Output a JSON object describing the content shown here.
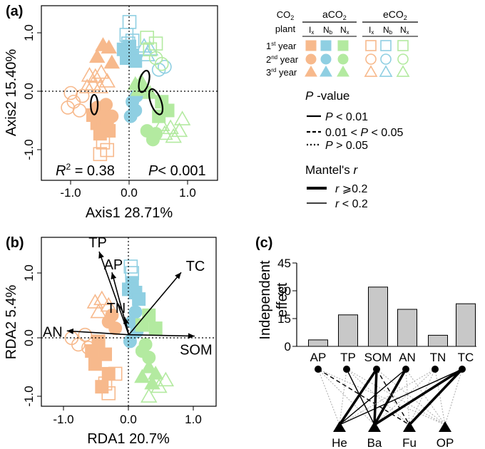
{
  "colors": {
    "ix": "#f7b98c",
    "nb": "#8fcfe2",
    "nx": "#b3eaa0",
    "bar": "#c8c8c8",
    "line": "#000000",
    "dotted_link": "#aaaaaa"
  },
  "panel_a": {
    "label": "(a)",
    "xlabel": "Axis1 28.71%",
    "ylabel": "Axis2 15.40%",
    "xticks": [
      "-1.0",
      "0.0",
      "1.0"
    ],
    "yticks": [
      "1.0",
      "0.0",
      "-1.0"
    ],
    "stats_r2_prefix": "R",
    "stats_r2_sup": "2",
    "stats_r2_value": " = 0.38",
    "stats_p_prefix": "P",
    "stats_p_value": "< 0.001"
  },
  "legend": {
    "co2_label": "CO",
    "co2_sub": "2",
    "plant_label": "plant",
    "aco2_prefix": "aCO",
    "aco2_sub": "2",
    "eco2_prefix": "eCO",
    "eco2_sub": "2",
    "col_ix": "I",
    "col_ix_sub": "x",
    "col_nb": "N",
    "col_nb_sub": "b",
    "col_nx": "N",
    "col_nx_sub": "x",
    "years": [
      {
        "num": "1",
        "sup": "st",
        "label": " year"
      },
      {
        "num": "2",
        "sup": "nd",
        "label": " year"
      },
      {
        "num": "3",
        "sup": "rd",
        "label": " year"
      }
    ],
    "pvalue_title_p": "P",
    "pvalue_title_rest": " -value",
    "pvalue_entries": [
      {
        "p": "P",
        "rest": " < 0.01",
        "style": "solid"
      },
      {
        "pre": "0.01 < ",
        "p": "P",
        "rest": " < 0.05",
        "style": "dashed"
      },
      {
        "p": "P",
        "rest": " > 0.05",
        "style": "dotted"
      }
    ],
    "mantel_title": "Mantel's ",
    "mantel_r": "r",
    "mantel_entries": [
      {
        "r": "r",
        "rest": " ⩾0.2",
        "weight": "thick"
      },
      {
        "r": "r",
        "rest": " < 0.2",
        "weight": "thin"
      }
    ]
  },
  "panel_b": {
    "label": "(b)",
    "xlabel": "RDA1  20.7%",
    "ylabel": "RDA2  5.4%",
    "xticks": [
      "-1.0",
      "0.0",
      "1.0"
    ],
    "yticks": [
      "1.0",
      "0.0",
      "-1.0"
    ],
    "arrows": [
      {
        "label": "TP",
        "x": -0.44,
        "y": 1.28
      },
      {
        "label": "AP",
        "x": -0.25,
        "y": 0.96
      },
      {
        "label": "TC",
        "x": 0.78,
        "y": 0.96
      },
      {
        "label": "TN",
        "x": -0.06,
        "y": 0.27
      },
      {
        "label": "AN",
        "x": -0.92,
        "y": 0.06
      },
      {
        "label": "SOM",
        "x": 0.98,
        "y": -0.02
      }
    ]
  },
  "panel_c": {
    "label": "(c)",
    "ylabel_line1": "Independent",
    "ylabel_line2": "effect",
    "yticks": [
      "45",
      "30",
      "15",
      "0"
    ]
  },
  "chart_data": [
    {
      "type": "scatter",
      "panel": "(a)",
      "xlabel": "Axis1 28.71%",
      "ylabel": "Axis2 15.40%",
      "xlim": [
        -1.5,
        1.5
      ],
      "ylim": [
        -1.4,
        1.6
      ],
      "annotation": "R2 = 0.38 P< 0.001",
      "series": [
        {
          "plant": "Ix",
          "co2": "aCO2",
          "year": 1,
          "points": [
            [
              -0.62,
              -0.28
            ],
            [
              -0.55,
              -0.42
            ],
            [
              -0.45,
              -0.5
            ],
            [
              -0.38,
              -0.35
            ],
            [
              -0.5,
              -0.6
            ],
            [
              -0.35,
              -0.55
            ]
          ]
        },
        {
          "plant": "Ix",
          "co2": "aCO2",
          "year": 2,
          "points": [
            [
              -0.55,
              -0.15
            ],
            [
              -0.45,
              -0.25
            ],
            [
              -0.4,
              -0.1
            ],
            [
              -0.3,
              -0.3
            ]
          ]
        },
        {
          "plant": "Ix",
          "co2": "aCO2",
          "year": 3,
          "points": [
            [
              -0.45,
              0.92
            ],
            [
              -0.35,
              0.88
            ],
            [
              -0.55,
              0.72
            ],
            [
              -0.3,
              0.62
            ]
          ]
        },
        {
          "plant": "Ix",
          "co2": "eCO2",
          "year": 1,
          "points": [
            [
              -0.45,
              -0.75
            ],
            [
              -0.5,
              -0.95
            ],
            [
              -0.38,
              -0.88
            ]
          ]
        },
        {
          "plant": "Ix",
          "co2": "eCO2",
          "year": 3,
          "points": [
            [
              -0.68,
              0.4
            ],
            [
              -0.58,
              0.38
            ],
            [
              -0.48,
              0.45
            ],
            [
              -0.62,
              0.25
            ],
            [
              -0.38,
              0.3
            ],
            [
              -0.72,
              0.2
            ],
            [
              -0.5,
              0.2
            ]
          ]
        },
        {
          "plant": "Ix",
          "co2": "eCO2",
          "year": 2,
          "points": [
            [
              -0.95,
              -0.05
            ],
            [
              -1.05,
              -0.15
            ],
            [
              -0.85,
              -0.2
            ],
            [
              -0.8,
              0.05
            ],
            [
              -1.0,
              0.1
            ]
          ]
        },
        {
          "plant": "Nb",
          "co2": "aCO2",
          "year": 1,
          "points": [
            [
              0.0,
              0.9
            ],
            [
              0.05,
              0.75
            ],
            [
              -0.05,
              0.7
            ],
            [
              0.1,
              0.65
            ],
            [
              -0.1,
              0.85
            ]
          ]
        },
        {
          "plant": "Nb",
          "co2": "aCO2",
          "year": 2,
          "points": [
            [
              0.05,
              -0.05
            ],
            [
              0.1,
              -0.2
            ],
            [
              0.02,
              -0.3
            ],
            [
              0.12,
              0.05
            ]
          ]
        },
        {
          "plant": "Nb",
          "co2": "eCO2",
          "year": 1,
          "points": [
            [
              0.0,
              1.32
            ],
            [
              -0.05,
              1.1
            ],
            [
              0.05,
              1.0
            ],
            [
              -0.02,
              0.95
            ]
          ]
        },
        {
          "plant": "Nb",
          "co2": "eCO2",
          "year": 3,
          "points": [
            [
              0.25,
              0.9
            ],
            [
              0.35,
              0.85
            ],
            [
              0.3,
              0.75
            ]
          ]
        },
        {
          "plant": "Nb",
          "co2": "eCO2",
          "year": 2,
          "points": [
            [
              0.6,
              0.55
            ],
            [
              0.5,
              0.5
            ]
          ]
        },
        {
          "plant": "Nx",
          "co2": "aCO2",
          "year": 1,
          "points": [
            [
              0.55,
              -0.05
            ],
            [
              0.65,
              -0.2
            ],
            [
              0.5,
              -0.3
            ]
          ]
        },
        {
          "plant": "Nx",
          "co2": "aCO2",
          "year": 2,
          "points": [
            [
              0.3,
              -0.55
            ],
            [
              0.4,
              -0.7
            ],
            [
              0.45,
              -0.6
            ]
          ]
        },
        {
          "plant": "Nx",
          "co2": "aCO2",
          "year": 3,
          "points": [
            [
              0.15,
              0.15
            ],
            [
              0.25,
              0.2
            ],
            [
              0.35,
              0.1
            ],
            [
              0.2,
              0.3
            ],
            [
              0.1,
              0.25
            ]
          ]
        },
        {
          "plant": "Nx",
          "co2": "eCO2",
          "year": 1,
          "points": [
            [
              0.3,
              1.05
            ],
            [
              0.45,
              0.95
            ],
            [
              0.35,
              0.85
            ]
          ]
        },
        {
          "plant": "Nx",
          "co2": "eCO2",
          "year": 2,
          "points": [
            [
              0.45,
              0.7
            ],
            [
              0.55,
              0.6
            ]
          ]
        },
        {
          "plant": "Nx",
          "co2": "eCO2",
          "year": 3,
          "points": [
            [
              0.7,
              -0.5
            ],
            [
              0.85,
              -0.55
            ],
            [
              0.9,
              -0.35
            ],
            [
              0.6,
              -0.6
            ],
            [
              0.55,
              -0.45
            ],
            [
              0.75,
              -0.65
            ]
          ]
        }
      ],
      "ellipses": [
        {
          "cx": -0.6,
          "cy": -0.1,
          "rx": 0.06,
          "ry": 0.17,
          "angle": 0
        },
        {
          "cx": 0.25,
          "cy": 0.3,
          "rx": 0.08,
          "ry": 0.19,
          "angle": 15
        },
        {
          "cx": 0.45,
          "cy": -0.05,
          "rx": 0.09,
          "ry": 0.23,
          "angle": -20
        }
      ]
    },
    {
      "type": "scatter",
      "panel": "(b)",
      "xlabel": "RDA1  20.7%",
      "ylabel": "RDA2  5.4%",
      "xlim": [
        -1.3,
        1.3
      ],
      "ylim": [
        -1.1,
        1.5
      ],
      "vectors": [
        {
          "label": "TP",
          "x": -0.44,
          "y": 1.28
        },
        {
          "label": "AP",
          "x": -0.25,
          "y": 0.96
        },
        {
          "label": "TC",
          "x": 0.78,
          "y": 0.96
        },
        {
          "label": "TN",
          "x": -0.06,
          "y": 0.27
        },
        {
          "label": "AN",
          "x": -0.92,
          "y": 0.06
        },
        {
          "label": "SOM",
          "x": 0.98,
          "y": -0.02
        }
      ],
      "series": [
        {
          "plant": "Ix",
          "co2": "aCO2",
          "year": 1,
          "points": [
            [
              -0.45,
              -0.1
            ],
            [
              -0.35,
              -0.3
            ],
            [
              -0.5,
              -0.45
            ],
            [
              -0.3,
              -0.6
            ],
            [
              -0.4,
              -0.8
            ],
            [
              -0.55,
              -0.25
            ]
          ]
        },
        {
          "plant": "Ix",
          "co2": "aCO2",
          "year": 2,
          "points": [
            [
              -0.3,
              0.2
            ],
            [
              -0.2,
              0.1
            ],
            [
              -0.25,
              0.3
            ]
          ]
        },
        {
          "plant": "Ix",
          "co2": "eCO2",
          "year": 3,
          "points": [
            [
              -0.5,
              0.5
            ],
            [
              -0.4,
              0.55
            ],
            [
              -0.3,
              0.45
            ],
            [
              -0.45,
              0.35
            ]
          ]
        },
        {
          "plant": "Ix",
          "co2": "eCO2",
          "year": 1,
          "points": [
            [
              -0.3,
              -0.9
            ],
            [
              -0.35,
              -0.75
            ],
            [
              -0.2,
              -0.6
            ]
          ]
        },
        {
          "plant": "Ix",
          "co2": "eCO2",
          "year": 2,
          "points": [
            [
              -0.85,
              -0.05
            ],
            [
              -0.75,
              -0.15
            ],
            [
              -0.65,
              0.0
            ],
            [
              -0.6,
              -0.2
            ]
          ]
        },
        {
          "plant": "Nb",
          "co2": "aCO2",
          "year": 1,
          "points": [
            [
              0.05,
              0.8
            ],
            [
              0.1,
              0.65
            ],
            [
              0.0,
              0.7
            ],
            [
              0.15,
              0.55
            ]
          ]
        },
        {
          "plant": "Nb",
          "co2": "aCO2",
          "year": 2,
          "points": [
            [
              0.05,
              0.2
            ],
            [
              0.12,
              0.05
            ],
            [
              0.02,
              -0.1
            ],
            [
              0.1,
              0.35
            ]
          ]
        },
        {
          "plant": "Nb",
          "co2": "eCO2",
          "year": 1,
          "points": [
            [
              0.03,
              1.05
            ],
            [
              0.05,
              0.95
            ]
          ]
        },
        {
          "plant": "Nx",
          "co2": "aCO2",
          "year": 2,
          "points": [
            [
              0.2,
              -0.25
            ],
            [
              0.3,
              -0.35
            ],
            [
              0.25,
              -0.15
            ]
          ]
        },
        {
          "plant": "Nx",
          "co2": "aCO2",
          "year": 3,
          "points": [
            [
              0.3,
              -0.5
            ],
            [
              0.4,
              -0.6
            ],
            [
              0.35,
              -0.75
            ],
            [
              0.2,
              -0.65
            ]
          ]
        },
        {
          "plant": "Nx",
          "co2": "aCO2",
          "year": 1,
          "points": [
            [
              0.3,
              0.3
            ],
            [
              0.4,
              0.1
            ],
            [
              0.2,
              0.15
            ]
          ]
        },
        {
          "plant": "Nx",
          "co2": "eCO2",
          "year": 3,
          "points": [
            [
              0.45,
              -0.8
            ],
            [
              0.55,
              -0.7
            ],
            [
              0.3,
              -0.95
            ]
          ]
        }
      ]
    },
    {
      "type": "bar",
      "panel": "(c)",
      "ylabel": "Independent effect",
      "categories": [
        "AP",
        "TP",
        "SOM",
        "AN",
        "TN",
        "TC"
      ],
      "values": [
        3.5,
        17,
        32,
        20,
        6,
        23
      ],
      "ylim": [
        0,
        45
      ],
      "network": {
        "response_nodes": [
          "He",
          "Ba",
          "Fu",
          "OP"
        ],
        "links": [
          {
            "from": "AP",
            "to": "He",
            "p": "dotted",
            "r": "thin"
          },
          {
            "from": "AP",
            "to": "Ba",
            "p": "dotted",
            "r": "thin"
          },
          {
            "from": "AP",
            "to": "Fu",
            "p": "dashed",
            "r": "thin"
          },
          {
            "from": "AP",
            "to": "OP",
            "p": "dotted",
            "r": "thin"
          },
          {
            "from": "TP",
            "to": "He",
            "p": "dotted",
            "r": "thin"
          },
          {
            "from": "TP",
            "to": "Ba",
            "p": "solid",
            "r": "thin"
          },
          {
            "from": "TP",
            "to": "Fu",
            "p": "dotted",
            "r": "thin"
          },
          {
            "from": "TP",
            "to": "OP",
            "p": "dotted",
            "r": "thin"
          },
          {
            "from": "SOM",
            "to": "He",
            "p": "solid",
            "r": "thick"
          },
          {
            "from": "SOM",
            "to": "Ba",
            "p": "solid",
            "r": "thick"
          },
          {
            "from": "SOM",
            "to": "Fu",
            "p": "dashed",
            "r": "thin"
          },
          {
            "from": "SOM",
            "to": "OP",
            "p": "dotted",
            "r": "thin"
          },
          {
            "from": "AN",
            "to": "He",
            "p": "solid",
            "r": "thin"
          },
          {
            "from": "AN",
            "to": "Ba",
            "p": "solid",
            "r": "thick"
          },
          {
            "from": "AN",
            "to": "Fu",
            "p": "dotted",
            "r": "thin"
          },
          {
            "from": "AN",
            "to": "OP",
            "p": "dotted",
            "r": "thin"
          },
          {
            "from": "TN",
            "to": "He",
            "p": "dotted",
            "r": "thin"
          },
          {
            "from": "TN",
            "to": "Ba",
            "p": "dotted",
            "r": "thin"
          },
          {
            "from": "TN",
            "to": "Fu",
            "p": "dotted",
            "r": "thin"
          },
          {
            "from": "TN",
            "to": "OP",
            "p": "dotted",
            "r": "thin"
          },
          {
            "from": "TC",
            "to": "He",
            "p": "solid",
            "r": "thin"
          },
          {
            "from": "TC",
            "to": "Ba",
            "p": "solid",
            "r": "thick"
          },
          {
            "from": "TC",
            "to": "Fu",
            "p": "solid",
            "r": "thick"
          },
          {
            "from": "TC",
            "to": "OP",
            "p": "dotted",
            "r": "thin"
          }
        ]
      }
    }
  ]
}
